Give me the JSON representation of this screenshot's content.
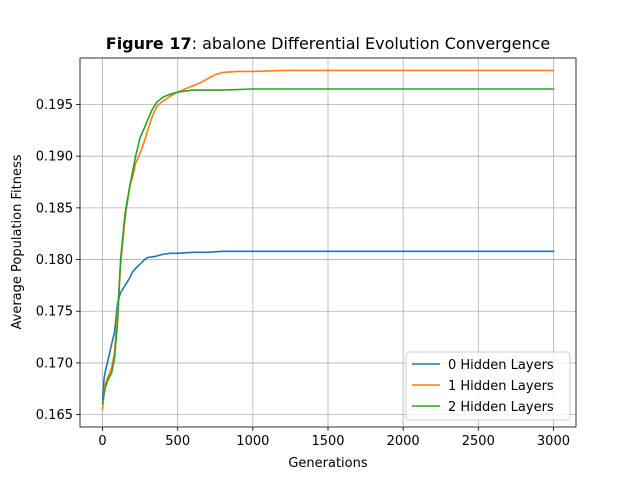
{
  "chart_data": {
    "type": "line",
    "title_bold": "Figure 17",
    "title_rest": ": abalone Differential Evolution Convergence",
    "xlabel": "Generations",
    "ylabel": "Average Population Fitness",
    "xlim": [
      -150,
      3150
    ],
    "ylim": [
      0.1638,
      0.1995
    ],
    "xticks": [
      0,
      500,
      1000,
      1500,
      2000,
      2500,
      3000
    ],
    "yticks": [
      0.165,
      0.17,
      0.175,
      0.18,
      0.185,
      0.19,
      0.195
    ],
    "ytick_labels": [
      "0.165",
      "0.170",
      "0.175",
      "0.180",
      "0.185",
      "0.190",
      "0.195"
    ],
    "grid": true,
    "legend_position": "lower-right",
    "series": [
      {
        "name": "0 Hidden Layers",
        "color": "#1f77b4",
        "x": [
          0,
          10,
          20,
          40,
          60,
          80,
          100,
          120,
          150,
          180,
          200,
          230,
          260,
          280,
          300,
          350,
          400,
          450,
          500,
          600,
          700,
          800,
          1000,
          1500,
          2000,
          2500,
          3000
        ],
        "y": [
          0.1665,
          0.1685,
          0.1693,
          0.1705,
          0.1718,
          0.173,
          0.1758,
          0.1768,
          0.1775,
          0.1782,
          0.1788,
          0.1793,
          0.1797,
          0.18,
          0.1802,
          0.1803,
          0.1805,
          0.1806,
          0.1806,
          0.1807,
          0.1807,
          0.1808,
          0.1808,
          0.1808,
          0.1808,
          0.1808,
          0.1808
        ]
      },
      {
        "name": "1 Hidden Layers",
        "color": "#ff7f0e",
        "x": [
          0,
          10,
          20,
          40,
          60,
          80,
          100,
          120,
          150,
          180,
          200,
          220,
          250,
          280,
          300,
          330,
          360,
          400,
          450,
          500,
          550,
          600,
          650,
          700,
          750,
          800,
          900,
          1000,
          1200,
          1500,
          2000,
          2500,
          3000
        ],
        "y": [
          0.1655,
          0.1672,
          0.168,
          0.1688,
          0.1695,
          0.171,
          0.175,
          0.1795,
          0.184,
          0.187,
          0.188,
          0.1893,
          0.1903,
          0.1915,
          0.1925,
          0.1938,
          0.1948,
          0.1953,
          0.1958,
          0.1962,
          0.1965,
          0.1968,
          0.1971,
          0.1975,
          0.1979,
          0.1981,
          0.1982,
          0.1982,
          0.1983,
          0.1983,
          0.1983,
          0.1983,
          0.1983
        ]
      },
      {
        "name": "2 Hidden Layers",
        "color": "#2ca02c",
        "x": [
          0,
          10,
          20,
          40,
          60,
          80,
          100,
          120,
          150,
          180,
          200,
          220,
          250,
          280,
          300,
          330,
          360,
          400,
          450,
          500,
          600,
          800,
          1000,
          1500,
          2000,
          2500,
          3000
        ],
        "y": [
          0.166,
          0.167,
          0.1677,
          0.1685,
          0.169,
          0.1705,
          0.174,
          0.18,
          0.1845,
          0.187,
          0.1885,
          0.19,
          0.1918,
          0.1928,
          0.1935,
          0.1945,
          0.1952,
          0.1957,
          0.196,
          0.1962,
          0.1964,
          0.1964,
          0.1965,
          0.1965,
          0.1965,
          0.1965,
          0.1965
        ]
      }
    ]
  }
}
